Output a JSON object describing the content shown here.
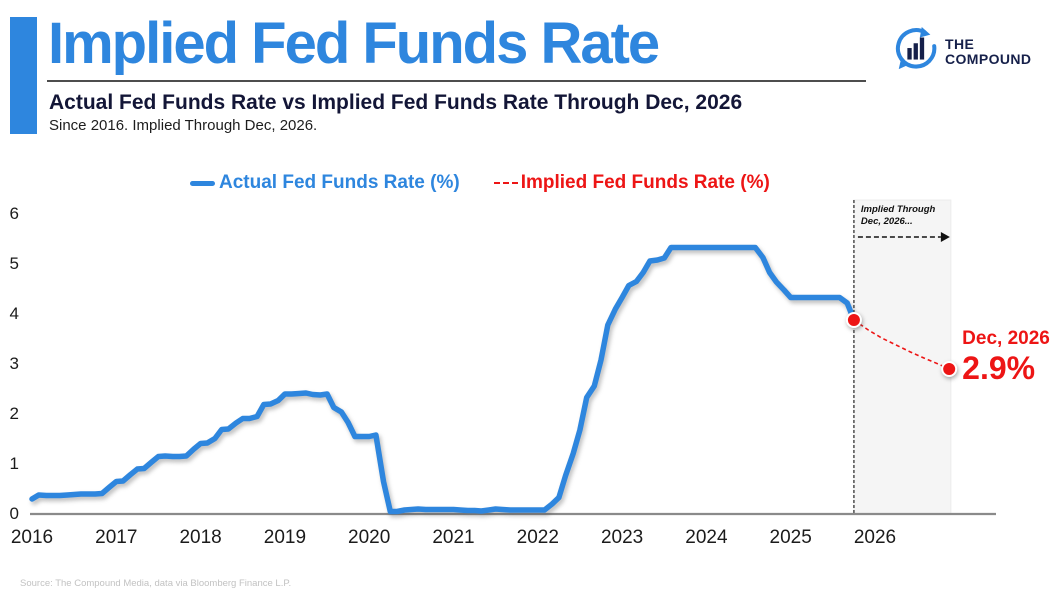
{
  "header": {
    "title": "Implied Fed Funds Rate",
    "subtitle": "Actual Fed Funds Rate vs Implied Fed Funds Rate Through Dec, 2026",
    "subtitle2": "Since 2016. Implied Through Dec, 2026.",
    "logo_line1": "THE",
    "logo_line2": "COMPOUND"
  },
  "legend": {
    "actual_label": "Actual Fed Funds Rate (%)",
    "implied_label": "Implied Fed Funds Rate (%)"
  },
  "annotations": {
    "region_note_line1": "Implied Through",
    "region_note_line2": "Dec, 2026...",
    "endpoint_date": "Dec, 2026",
    "endpoint_value": "2.9%"
  },
  "footer": {
    "source": "Source: The Compound Media, data via Bloomberg Finance L.P."
  },
  "colors": {
    "accent_blue": "#2E86DE",
    "accent_red": "#ED1515",
    "navy": "#16204A",
    "region_fill": "#F5F5F5",
    "axis_gray": "#8A8A8A"
  },
  "chart_data": {
    "type": "line",
    "title": "Actual Fed Funds Rate vs Implied Fed Funds Rate Through Dec, 2026",
    "xlabel": "",
    "ylabel": "",
    "ylim": [
      0,
      6
    ],
    "x_range": [
      2016,
      2026.95
    ],
    "grid": false,
    "legend_position": "top",
    "yticks": [
      "0",
      "1",
      "2",
      "3",
      "4",
      "5",
      "6"
    ],
    "ytick_values": [
      0,
      1,
      2,
      3,
      4,
      5,
      6
    ],
    "xticks": [
      "2016",
      "2017",
      "2018",
      "2019",
      "2020",
      "2021",
      "2022",
      "2023",
      "2024",
      "2025",
      "2026"
    ],
    "xtick_values": [
      2016,
      2017,
      2018,
      2019,
      2020,
      2021,
      2022,
      2023,
      2024,
      2025,
      2026
    ],
    "implied_region_start": 2025.75,
    "implied_region_end": 2026.9,
    "endpoint": {
      "x": 2026.88,
      "y": 2.9,
      "date": "Dec, 2026",
      "label": "2.9%"
    },
    "series": [
      {
        "name": "Actual Fed Funds Rate (%)",
        "style": "solid",
        "color": "#2E86DE",
        "points": [
          [
            2016.0,
            0.3
          ],
          [
            2016.08,
            0.38
          ],
          [
            2016.17,
            0.37
          ],
          [
            2016.25,
            0.37
          ],
          [
            2016.33,
            0.37
          ],
          [
            2016.42,
            0.38
          ],
          [
            2016.5,
            0.39
          ],
          [
            2016.58,
            0.4
          ],
          [
            2016.67,
            0.4
          ],
          [
            2016.75,
            0.4
          ],
          [
            2016.83,
            0.41
          ],
          [
            2016.92,
            0.54
          ],
          [
            2017.0,
            0.65
          ],
          [
            2017.08,
            0.66
          ],
          [
            2017.17,
            0.79
          ],
          [
            2017.25,
            0.9
          ],
          [
            2017.33,
            0.91
          ],
          [
            2017.42,
            1.04
          ],
          [
            2017.5,
            1.15
          ],
          [
            2017.58,
            1.16
          ],
          [
            2017.67,
            1.15
          ],
          [
            2017.75,
            1.15
          ],
          [
            2017.83,
            1.16
          ],
          [
            2017.92,
            1.3
          ],
          [
            2018.0,
            1.41
          ],
          [
            2018.08,
            1.42
          ],
          [
            2018.17,
            1.51
          ],
          [
            2018.25,
            1.69
          ],
          [
            2018.33,
            1.7
          ],
          [
            2018.42,
            1.82
          ],
          [
            2018.5,
            1.91
          ],
          [
            2018.58,
            1.91
          ],
          [
            2018.67,
            1.95
          ],
          [
            2018.75,
            2.19
          ],
          [
            2018.83,
            2.2
          ],
          [
            2018.92,
            2.27
          ],
          [
            2019.0,
            2.4
          ],
          [
            2019.08,
            2.4
          ],
          [
            2019.17,
            2.41
          ],
          [
            2019.25,
            2.42
          ],
          [
            2019.33,
            2.39
          ],
          [
            2019.42,
            2.38
          ],
          [
            2019.5,
            2.4
          ],
          [
            2019.58,
            2.13
          ],
          [
            2019.67,
            2.04
          ],
          [
            2019.75,
            1.83
          ],
          [
            2019.83,
            1.55
          ],
          [
            2019.92,
            1.55
          ],
          [
            2020.0,
            1.55
          ],
          [
            2020.08,
            1.58
          ],
          [
            2020.17,
            0.65
          ],
          [
            2020.25,
            0.05
          ],
          [
            2020.33,
            0.05
          ],
          [
            2020.42,
            0.08
          ],
          [
            2020.5,
            0.09
          ],
          [
            2020.58,
            0.1
          ],
          [
            2020.67,
            0.09
          ],
          [
            2020.75,
            0.09
          ],
          [
            2020.83,
            0.09
          ],
          [
            2020.92,
            0.09
          ],
          [
            2021.0,
            0.09
          ],
          [
            2021.08,
            0.08
          ],
          [
            2021.17,
            0.07
          ],
          [
            2021.25,
            0.07
          ],
          [
            2021.33,
            0.06
          ],
          [
            2021.42,
            0.08
          ],
          [
            2021.5,
            0.1
          ],
          [
            2021.58,
            0.09
          ],
          [
            2021.67,
            0.08
          ],
          [
            2021.75,
            0.08
          ],
          [
            2021.83,
            0.08
          ],
          [
            2021.92,
            0.08
          ],
          [
            2022.0,
            0.08
          ],
          [
            2022.08,
            0.08
          ],
          [
            2022.17,
            0.2
          ],
          [
            2022.25,
            0.33
          ],
          [
            2022.33,
            0.77
          ],
          [
            2022.42,
            1.21
          ],
          [
            2022.5,
            1.68
          ],
          [
            2022.58,
            2.33
          ],
          [
            2022.67,
            2.56
          ],
          [
            2022.75,
            3.08
          ],
          [
            2022.83,
            3.78
          ],
          [
            2022.92,
            4.1
          ],
          [
            2023.0,
            4.33
          ],
          [
            2023.08,
            4.57
          ],
          [
            2023.17,
            4.65
          ],
          [
            2023.25,
            4.83
          ],
          [
            2023.33,
            5.06
          ],
          [
            2023.42,
            5.08
          ],
          [
            2023.5,
            5.12
          ],
          [
            2023.58,
            5.33
          ],
          [
            2023.67,
            5.33
          ],
          [
            2023.75,
            5.33
          ],
          [
            2023.83,
            5.33
          ],
          [
            2023.92,
            5.33
          ],
          [
            2024.0,
            5.33
          ],
          [
            2024.08,
            5.33
          ],
          [
            2024.17,
            5.33
          ],
          [
            2024.25,
            5.33
          ],
          [
            2024.33,
            5.33
          ],
          [
            2024.42,
            5.33
          ],
          [
            2024.5,
            5.33
          ],
          [
            2024.58,
            5.33
          ],
          [
            2024.67,
            5.13
          ],
          [
            2024.75,
            4.83
          ],
          [
            2024.83,
            4.64
          ],
          [
            2024.92,
            4.48
          ],
          [
            2025.0,
            4.33
          ],
          [
            2025.08,
            4.33
          ],
          [
            2025.17,
            4.33
          ],
          [
            2025.25,
            4.33
          ],
          [
            2025.33,
            4.33
          ],
          [
            2025.42,
            4.33
          ],
          [
            2025.5,
            4.33
          ],
          [
            2025.58,
            4.33
          ],
          [
            2025.67,
            4.22
          ],
          [
            2025.75,
            3.88
          ]
        ]
      },
      {
        "name": "Implied Fed Funds Rate (%)",
        "style": "dashed",
        "color": "#ED1515",
        "points": [
          [
            2025.75,
            3.88
          ],
          [
            2025.92,
            3.68
          ],
          [
            2026.08,
            3.52
          ],
          [
            2026.25,
            3.38
          ],
          [
            2026.42,
            3.24
          ],
          [
            2026.58,
            3.12
          ],
          [
            2026.75,
            3.0
          ],
          [
            2026.88,
            2.9
          ]
        ]
      }
    ]
  }
}
